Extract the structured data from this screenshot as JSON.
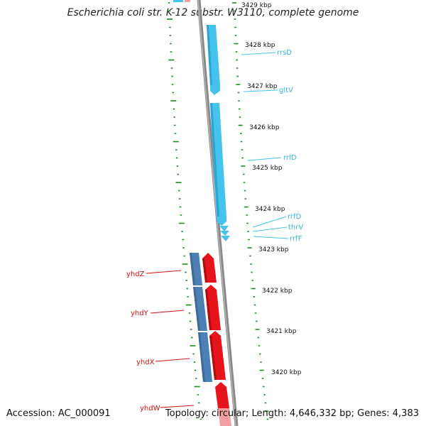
{
  "title": "Escherichia coli str. K-12 substr. W3110, complete genome",
  "footer": {
    "accession": "Accession: AC_000091",
    "topology": "Topology: circular; Length: 4,646,332 bp; Genes: 4,383"
  },
  "colors": {
    "rna": "#45c3ec",
    "rna_label": "#3ab4e0",
    "gene_forward": "#e8141b",
    "gene_reverse": "#4678a8",
    "gene_label": "#d01010",
    "ticks": "#1d8a1d",
    "backbone": "#808080"
  },
  "kbp_labels": [
    "3429 kbp",
    "3428 kbp",
    "3427 kbp",
    "3426 kbp",
    "3425 kbp",
    "3424 kbp",
    "3423 kbp",
    "3422 kbp",
    "3421 kbp",
    "3420 kbp"
  ],
  "rna_genes": [
    "rrsD",
    "gltV",
    "rrlD",
    "rrfD",
    "thrV",
    "rrfF"
  ],
  "protein_genes": [
    "yhdZ",
    "yhdY",
    "yhdX",
    "yhdW"
  ]
}
